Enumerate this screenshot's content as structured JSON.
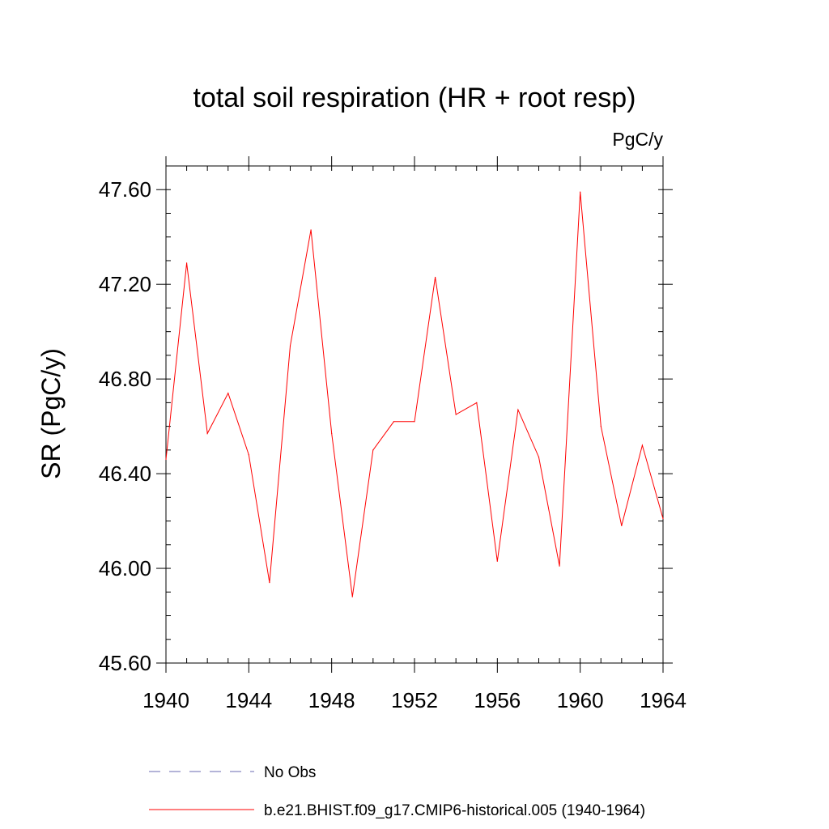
{
  "chart_data": {
    "type": "line",
    "title": "total soil respiration (HR + root resp)",
    "units_label": "PgC/y",
    "xlabel": "",
    "ylabel": "SR  (PgC/y)",
    "xlim": [
      1940,
      1964
    ],
    "ylim": [
      45.6,
      47.7
    ],
    "x_ticks": [
      "1940",
      "1944",
      "1948",
      "1952",
      "1956",
      "1960",
      "1964"
    ],
    "y_ticks": [
      "45.60",
      "46.00",
      "46.40",
      "46.80",
      "47.20",
      "47.60"
    ],
    "series": [
      {
        "name": "b.e21.BHIST.f09_g17.CMIP6-historical.005 (1940-1964)",
        "color": "#ff0000",
        "style": "solid",
        "x": [
          1940,
          1941,
          1942,
          1943,
          1944,
          1945,
          1946,
          1947,
          1948,
          1949,
          1950,
          1951,
          1952,
          1953,
          1954,
          1955,
          1956,
          1957,
          1958,
          1959,
          1960,
          1961,
          1962,
          1963,
          1964
        ],
        "values": [
          46.46,
          47.29,
          46.57,
          46.74,
          46.48,
          45.94,
          46.94,
          47.43,
          46.57,
          45.88,
          46.5,
          46.62,
          46.62,
          47.23,
          46.65,
          46.7,
          46.03,
          46.67,
          46.47,
          46.01,
          47.59,
          46.6,
          46.18,
          46.52,
          46.21
        ]
      }
    ],
    "legend": [
      {
        "label": "No Obs",
        "color": "#6a6ab0",
        "style": "dashed"
      },
      {
        "label": "b.e21.BHIST.f09_g17.CMIP6-historical.005 (1940-1964)",
        "color": "#ff0000",
        "style": "solid"
      }
    ],
    "legend_position": "bottom"
  }
}
